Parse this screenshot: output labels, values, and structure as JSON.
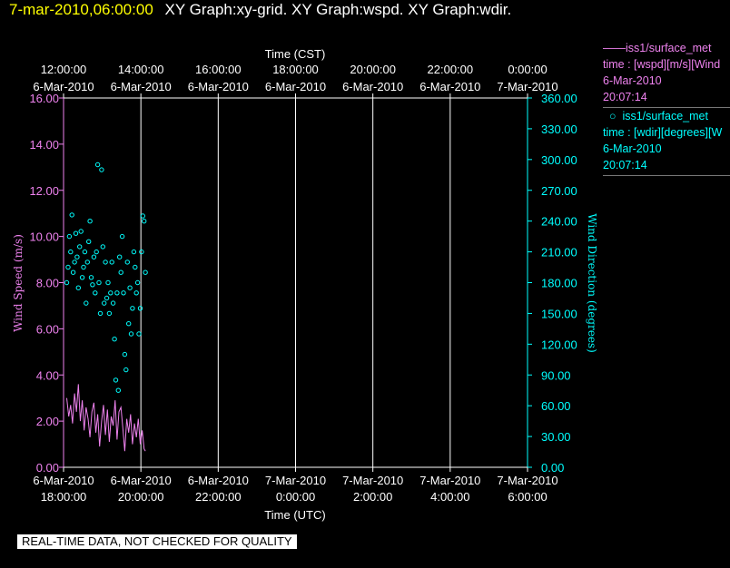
{
  "header": {
    "timestamp": "7-mar-2010,06:00:00",
    "title": "XY Graph:xy-grid.  XY Graph:wspd.  XY Graph:wdir."
  },
  "legend": [
    {
      "name": "iss1/surface_met",
      "line2": "time : [wspd][m/s][Wind",
      "date": "6-Mar-2010",
      "time": "20:07:14",
      "color": "#ee82ee",
      "marker": "line"
    },
    {
      "name": "iss1/surface_met",
      "line2": "time : [wdir][degrees][W",
      "date": "6-Mar-2010",
      "time": "20:07:14",
      "color": "#00ffff",
      "marker": "circle"
    }
  ],
  "notice": "REAL-TIME DATA, NOT CHECKED FOR QUALITY",
  "chart_data": {
    "type": "scatter",
    "top_axis": {
      "label": "Time (CST)",
      "ticks": [
        {
          "time": "12:00:00",
          "date": "6-Mar-2010"
        },
        {
          "time": "14:00:00",
          "date": "6-Mar-2010"
        },
        {
          "time": "16:00:00",
          "date": "6-Mar-2010"
        },
        {
          "time": "18:00:00",
          "date": "6-Mar-2010"
        },
        {
          "time": "20:00:00",
          "date": "6-Mar-2010"
        },
        {
          "time": "22:00:00",
          "date": "6-Mar-2010"
        },
        {
          "time": "0:00:00",
          "date": "7-Mar-2010"
        }
      ]
    },
    "bottom_axis": {
      "label": "Time (UTC)",
      "ticks": [
        {
          "date": "6-Mar-2010",
          "time": "18:00:00"
        },
        {
          "date": "6-Mar-2010",
          "time": "20:00:00"
        },
        {
          "date": "6-Mar-2010",
          "time": "22:00:00"
        },
        {
          "date": "7-Mar-2010",
          "time": "0:00:00"
        },
        {
          "date": "7-Mar-2010",
          "time": "2:00:00"
        },
        {
          "date": "7-Mar-2010",
          "time": "4:00:00"
        },
        {
          "date": "7-Mar-2010",
          "time": "6:00:00"
        }
      ],
      "xlim": [
        "6-Mar-2010 18:00:00",
        "7-Mar-2010 06:00:00"
      ]
    },
    "left_axis": {
      "label": "Wind Speed (m/s)",
      "ylim": [
        0,
        16
      ],
      "ticks": [
        "0.00",
        "2.00",
        "4.00",
        "6.00",
        "8.00",
        "10.00",
        "12.00",
        "14.00",
        "16.00"
      ],
      "color": "#ee82ee"
    },
    "right_axis": {
      "label": "Wind Direction (degrees)",
      "ylim": [
        0,
        360
      ],
      "ticks": [
        "0.00",
        "30.00",
        "60.00",
        "90.00",
        "120.00",
        "150.00",
        "180.00",
        "210.00",
        "240.00",
        "270.00",
        "300.00",
        "330.00",
        "360.00"
      ],
      "color": "#00ffff"
    },
    "grid": "vertical",
    "series": [
      {
        "name": "iss1/surface_met",
        "axis": "left",
        "style": "line",
        "color": "#ee82ee",
        "x": [
          "18:05",
          "18:08",
          "18:11",
          "18:14",
          "18:17",
          "18:20",
          "18:23",
          "18:26",
          "18:29",
          "18:32",
          "18:35",
          "18:38",
          "18:41",
          "18:44",
          "18:47",
          "18:50",
          "18:53",
          "18:56",
          "18:59",
          "19:02",
          "19:05",
          "19:08",
          "19:11",
          "19:14",
          "19:17",
          "19:20",
          "19:23",
          "19:26",
          "19:29",
          "19:32",
          "19:35",
          "19:38",
          "19:41",
          "19:44",
          "19:47",
          "19:50",
          "19:53",
          "19:56",
          "19:59",
          "20:02",
          "20:05",
          "20:07"
        ],
        "y": [
          3.0,
          2.2,
          2.7,
          1.9,
          3.2,
          2.4,
          3.6,
          2.0,
          2.9,
          1.6,
          2.6,
          2.1,
          1.3,
          2.4,
          2.8,
          1.5,
          2.3,
          0.9,
          2.0,
          2.7,
          1.4,
          2.5,
          1.1,
          2.2,
          1.8,
          2.9,
          1.2,
          2.4,
          2.6,
          1.7,
          0.7,
          2.1,
          1.5,
          2.3,
          1.0,
          1.9,
          1.3,
          2.1,
          1.0,
          1.6,
          0.8,
          0.7
        ]
      },
      {
        "name": "iss1/surface_met",
        "axis": "right",
        "style": "circle",
        "color": "#00ffff",
        "x": [
          "18:05",
          "18:07",
          "18:09",
          "18:11",
          "18:13",
          "18:15",
          "18:17",
          "18:19",
          "18:21",
          "18:23",
          "18:25",
          "18:27",
          "18:29",
          "18:31",
          "18:33",
          "18:35",
          "18:37",
          "18:39",
          "18:41",
          "18:43",
          "18:45",
          "18:47",
          "18:49",
          "18:51",
          "18:53",
          "18:55",
          "18:57",
          "18:59",
          "19:01",
          "19:03",
          "19:05",
          "19:07",
          "19:09",
          "19:11",
          "19:13",
          "19:15",
          "19:17",
          "19:19",
          "19:21",
          "19:23",
          "19:25",
          "19:27",
          "19:29",
          "19:31",
          "19:33",
          "19:35",
          "19:37",
          "19:39",
          "19:41",
          "19:43",
          "19:45",
          "19:47",
          "19:49",
          "19:51",
          "19:53",
          "19:55",
          "19:57",
          "19:59",
          "20:01",
          "20:03",
          "20:05",
          "20:07"
        ],
        "y": [
          180,
          195,
          225,
          210,
          246,
          190,
          200,
          228,
          205,
          175,
          215,
          230,
          185,
          195,
          210,
          160,
          200,
          220,
          240,
          185,
          178,
          205,
          170,
          210,
          295,
          180,
          150,
          290,
          215,
          160,
          200,
          165,
          180,
          150,
          170,
          200,
          160,
          125,
          85,
          170,
          75,
          205,
          190,
          225,
          170,
          110,
          95,
          200,
          140,
          175,
          130,
          155,
          210,
          195,
          170,
          180,
          130,
          155,
          210,
          245,
          240,
          190
        ]
      }
    ]
  }
}
